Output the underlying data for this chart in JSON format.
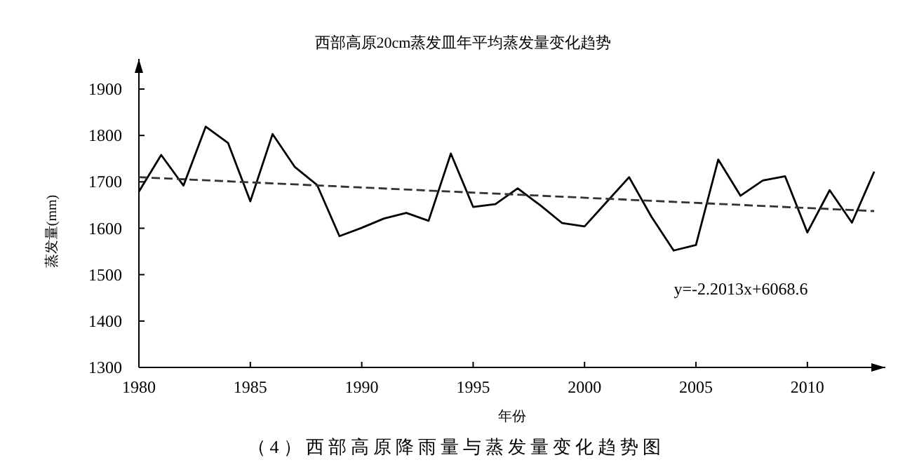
{
  "chart_data": {
    "type": "line",
    "title": "西部高原20cm蒸发皿年平均蒸发量变化趋势",
    "xlabel": "年份",
    "ylabel": "蒸发量(mm)",
    "annotations": [
      "y=-2.2013x+6068.6",
      "（4）西部高原降雨量与蒸发量变化趋势图"
    ],
    "x": [
      1980,
      1981,
      1982,
      1983,
      1984,
      1985,
      1986,
      1987,
      1988,
      1989,
      1990,
      1991,
      1992,
      1993,
      1994,
      1995,
      1996,
      1997,
      1998,
      1999,
      2000,
      2001,
      2002,
      2003,
      2004,
      2005,
      2006,
      2007,
      2008,
      2009,
      2010,
      2011,
      2012,
      2013
    ],
    "xlim": [
      1980,
      2013.5
    ],
    "ylim": [
      1300,
      1965
    ],
    "xticks": [
      1980,
      1985,
      1990,
      1995,
      2000,
      2005,
      2010
    ],
    "yticks": [
      1300,
      1400,
      1500,
      1600,
      1700,
      1800,
      1900
    ],
    "marker": "none",
    "series": [
      {
        "color": "#000000",
        "line_style": "solid",
        "values": [
          1679,
          1758,
          1692,
          1819,
          1784,
          1658,
          1803,
          1732,
          1693,
          1583,
          1601,
          1621,
          1633,
          1616,
          1761,
          1646,
          1652,
          1686,
          1650,
          1611,
          1604,
          1657,
          1710,
          1625,
          1552,
          1564,
          1748,
          1670,
          1703,
          1712,
          1591,
          1682,
          1612,
          1722
        ]
      },
      {
        "type": "line",
        "color": "#333333",
        "line_style": "dashed",
        "x": [
          1980,
          2013
        ],
        "values": [
          1710,
          1637
        ]
      }
    ]
  }
}
